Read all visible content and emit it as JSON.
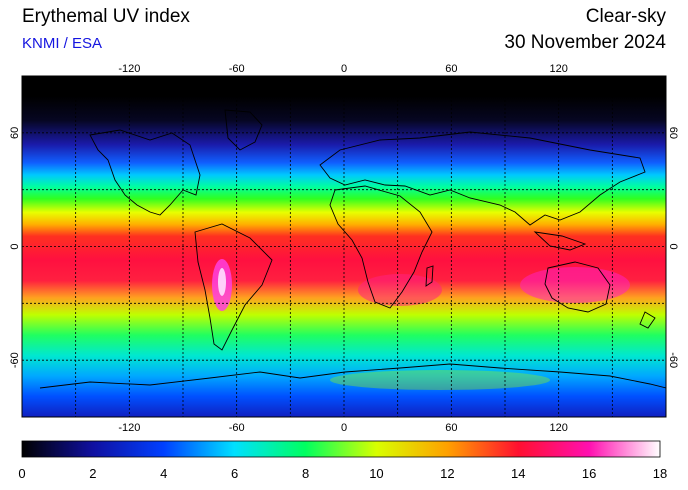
{
  "header": {
    "title": "Erythemal UV index",
    "credit": "KNMI / ESA",
    "product": "Clear-sky",
    "date": "30 November 2024"
  },
  "map": {
    "lon_range": [
      -180,
      180
    ],
    "lat_range": [
      -90,
      90
    ],
    "grid": true,
    "lon_ticks": [
      "-120",
      "-60",
      "0",
      "60",
      "120"
    ],
    "lat_ticks": [
      "60",
      "0",
      "-60"
    ],
    "lon_tick_values": [
      -120,
      -60,
      0,
      60,
      120
    ],
    "lat_tick_values": [
      60,
      0,
      -60
    ],
    "grid_lon": [
      -150,
      -120,
      -90,
      -60,
      -30,
      0,
      30,
      60,
      90,
      120,
      150
    ],
    "grid_lat": [
      60,
      30,
      0,
      -30,
      -60
    ]
  },
  "colorbar": {
    "min": 0,
    "max": 18,
    "labels": [
      "0",
      "2",
      "4",
      "6",
      "8",
      "10",
      "12",
      "14",
      "16",
      "18"
    ],
    "colors": [
      "#000000",
      "#1010a0",
      "#0040ff",
      "#00e0ff",
      "#00ff60",
      "#d8ff00",
      "#ffa000",
      "#ff1030",
      "#ff10b0",
      "#ffffff"
    ]
  }
}
